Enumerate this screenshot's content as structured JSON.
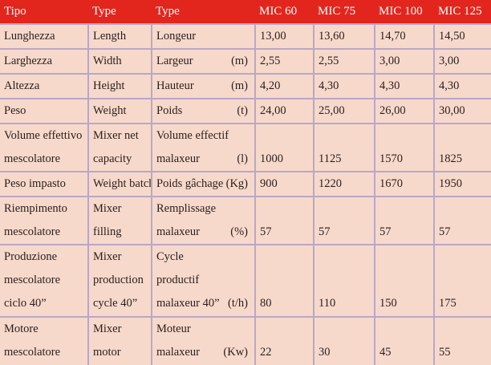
{
  "headers": [
    "Tipo",
    "Type",
    "Type",
    "MIC 60",
    "MIC 75",
    "MIC 100",
    "MIC 125"
  ],
  "rows": [
    {
      "it": [
        "Lunghezza"
      ],
      "en": [
        "Length"
      ],
      "fr": [
        "Longeur"
      ],
      "unit": "",
      "values": [
        "13,00",
        "13,60",
        "14,70",
        "14,50"
      ]
    },
    {
      "it": [
        "Larghezza"
      ],
      "en": [
        "Width"
      ],
      "fr": [
        "Largeur"
      ],
      "unit": "(m)",
      "values": [
        "2,55",
        "2,55",
        "3,00",
        "3,00"
      ]
    },
    {
      "it": [
        "Altezza"
      ],
      "en": [
        "Height"
      ],
      "fr": [
        "Hauteur"
      ],
      "unit": "(m)",
      "values": [
        "4,20",
        "4,30",
        "4,30",
        "4,30"
      ]
    },
    {
      "it": [
        "Peso"
      ],
      "en": [
        "Weight"
      ],
      "fr": [
        "Poids"
      ],
      "unit": "(t)",
      "values": [
        "24,00",
        "25,00",
        "26,00",
        "30,00"
      ]
    },
    {
      "it": [
        "Volume effettivo",
        "mescolatore"
      ],
      "en": [
        "Mixer net",
        "capacity"
      ],
      "fr": [
        "Volume effectif",
        "malaxeur"
      ],
      "unit": "(l)",
      "values": [
        "1000",
        "1125",
        "1570",
        "1825"
      ]
    },
    {
      "it": [
        "Peso impasto"
      ],
      "en": [
        "Weight batch"
      ],
      "fr": [
        "Poids gâchage"
      ],
      "unit": "(Kg)",
      "values": [
        "900",
        "1220",
        "1670",
        "1950"
      ]
    },
    {
      "it": [
        "Riempimento",
        "mescolatore"
      ],
      "en": [
        "Mixer",
        "filling"
      ],
      "fr": [
        "Remplissage",
        "malaxeur"
      ],
      "unit": "(%)",
      "values": [
        "57",
        "57",
        "57",
        "57"
      ]
    },
    {
      "it": [
        "Produzione",
        "mescolatore",
        "ciclo 40”"
      ],
      "en": [
        "Mixer",
        "production",
        "cycle 40”"
      ],
      "fr": [
        "Cycle",
        "productif",
        "malaxeur 40”"
      ],
      "unit": "(t/h)",
      "values": [
        "80",
        "110",
        "150",
        "175"
      ]
    },
    {
      "it": [
        "Motore",
        "mescolatore"
      ],
      "en": [
        "Mixer",
        "motor"
      ],
      "fr": [
        "Moteur",
        "malaxeur"
      ],
      "unit": "(Kw)",
      "values": [
        "22",
        "30",
        "45",
        "55"
      ]
    }
  ]
}
